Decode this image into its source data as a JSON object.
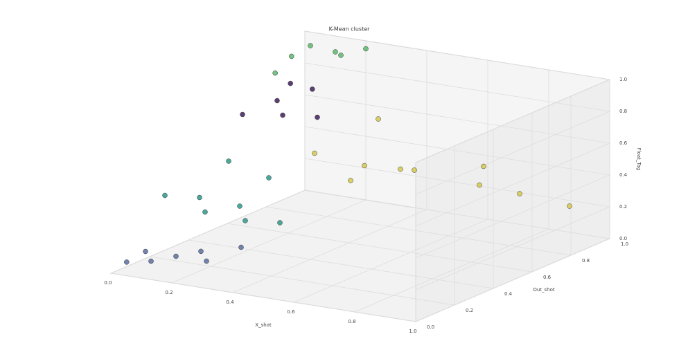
{
  "chart_data": {
    "type": "scatter3d",
    "title": "K-Mean cluster",
    "x_label": "X_shot",
    "y_label": "Out_shot",
    "z_label": "Float_Tag",
    "xlim": [
      0,
      1
    ],
    "ylim": [
      0,
      1
    ],
    "zlim": [
      0,
      1
    ],
    "xticks": [
      {
        "value": 0,
        "label": "0.0"
      },
      {
        "value": 0.2,
        "label": "0.2"
      },
      {
        "value": 0.4,
        "label": "0.4"
      },
      {
        "value": 0.6,
        "label": "0.6"
      },
      {
        "value": 0.8,
        "label": "0.8"
      },
      {
        "value": 1,
        "label": "1.0"
      }
    ],
    "yticks": [
      {
        "value": 0,
        "label": "0.0"
      },
      {
        "value": 0.2,
        "label": "0.2"
      },
      {
        "value": 0.4,
        "label": "0.4"
      },
      {
        "value": 0.6,
        "label": "0.6"
      },
      {
        "value": 0.8,
        "label": "0.8"
      },
      {
        "value": 1,
        "label": "1.0"
      }
    ],
    "zticks": [
      {
        "value": 0,
        "label": "0.0"
      },
      {
        "value": 0.2,
        "label": "0.2"
      },
      {
        "value": 0.4,
        "label": "0.4"
      },
      {
        "value": 0.6,
        "label": "0.6"
      },
      {
        "value": 0.8,
        "label": "0.8"
      },
      {
        "value": 1,
        "label": "1.0"
      }
    ],
    "grid": true,
    "series": [
      {
        "color": "#5a6ea0",
        "x": [
          0.02,
          0.05,
          0.1,
          0.15,
          0.2,
          0.25,
          0.3
        ],
        "y": [
          0.05,
          0.1,
          0.05,
          0.1,
          0.15,
          0.1,
          0.2
        ],
        "z": [
          0.05,
          0.1,
          0.08,
          0.1,
          0.12,
          0.1,
          0.15
        ]
      },
      {
        "color": "#2a9a8a",
        "x": [
          0.05,
          0.1,
          0.15,
          0.2,
          0.25,
          0.3,
          0.1,
          0.2
        ],
        "y": [
          0.2,
          0.3,
          0.25,
          0.35,
          0.3,
          0.4,
          0.45,
          0.5
        ],
        "z": [
          0.4,
          0.35,
          0.3,
          0.3,
          0.25,
          0.2,
          0.5,
          0.4
        ]
      },
      {
        "color": "#3e1f5a",
        "x": [
          0.05,
          0.1,
          0.15,
          0.2,
          0.08,
          0.12
        ],
        "y": [
          0.6,
          0.7,
          0.65,
          0.75,
          0.8,
          0.85
        ],
        "z": [
          0.7,
          0.75,
          0.7,
          0.65,
          0.8,
          0.75
        ]
      },
      {
        "color": "#5cb86a",
        "x": [
          0.02,
          0.05,
          0.1,
          0.15,
          0.2,
          0.03
        ],
        "y": [
          0.9,
          0.95,
          1.0,
          0.95,
          1.0,
          0.8
        ],
        "z": [
          0.9,
          0.95,
          0.9,
          0.92,
          0.95,
          0.85
        ]
      },
      {
        "color": "#d4c84a",
        "x": [
          0.35,
          0.45,
          0.55,
          0.6,
          0.7,
          0.4,
          0.5,
          0.65,
          0.8,
          0.9
        ],
        "y": [
          0.5,
          0.6,
          0.7,
          0.55,
          0.8,
          0.75,
          0.45,
          0.9,
          0.85,
          0.95
        ],
        "z": [
          0.6,
          0.5,
          0.45,
          0.55,
          0.35,
          0.7,
          0.5,
          0.4,
          0.3,
          0.2
        ]
      }
    ]
  }
}
